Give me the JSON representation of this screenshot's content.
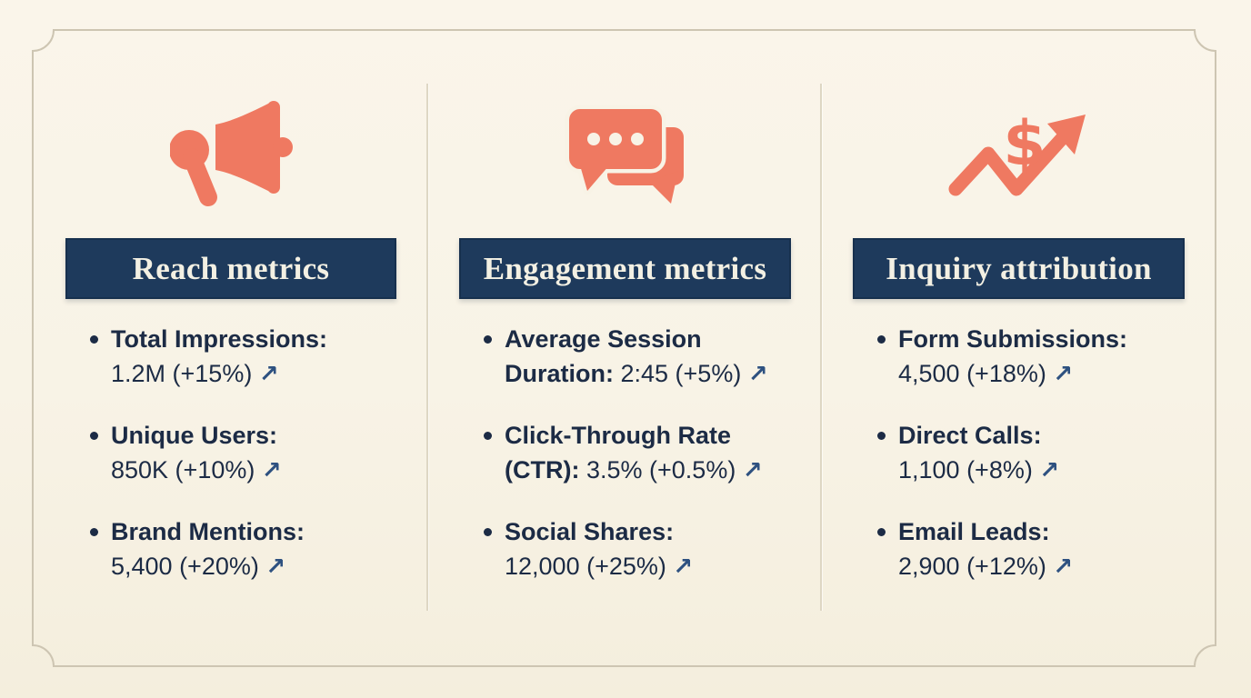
{
  "colors": {
    "background": "#f8f3e6",
    "frame_line": "#cdc5b2",
    "divider": "#ded7c4",
    "navy": "#1e3a5c",
    "header_text": "#f3f0e3",
    "body_text": "#1c2b45",
    "trend_arrow": "#2e5180",
    "accent_coral": "#ef7961"
  },
  "glyphs": {
    "trend_arrow": "↗"
  },
  "columns": [
    {
      "icon": "megaphone-icon",
      "header": "Reach metrics",
      "items": [
        {
          "lines": [
            {
              "bold": "Total Impressions:"
            },
            {
              "regular": "1.2M (+15%)",
              "arrow": true
            }
          ]
        },
        {
          "lines": [
            {
              "bold": "Unique Users:"
            },
            {
              "regular": "850K (+10%)",
              "arrow": true
            }
          ]
        },
        {
          "lines": [
            {
              "bold": "Brand Mentions:"
            },
            {
              "regular": "5,400 (+20%)",
              "arrow": true
            }
          ]
        }
      ]
    },
    {
      "icon": "chat-bubbles-icon",
      "header": "Engagement metrics",
      "items": [
        {
          "lines": [
            {
              "bold": "Average Session"
            },
            {
              "bold": "Duration:",
              "regular": "2:45 (+5%)",
              "arrow": true
            }
          ]
        },
        {
          "lines": [
            {
              "bold": "Click-Through Rate"
            },
            {
              "bold": "(CTR):",
              "regular": "3.5% (+0.5%)",
              "arrow": true
            }
          ]
        },
        {
          "lines": [
            {
              "bold": "Social Shares:"
            },
            {
              "regular": "12,000 (+25%)",
              "arrow": true
            }
          ]
        }
      ]
    },
    {
      "icon": "dollar-trend-icon",
      "header": "Inquiry attribution",
      "items": [
        {
          "lines": [
            {
              "bold": "Form Submissions:"
            },
            {
              "regular": "4,500 (+18%)",
              "arrow": true
            }
          ]
        },
        {
          "lines": [
            {
              "bold": "Direct Calls:"
            },
            {
              "regular": "1,100 (+8%)",
              "arrow": true
            }
          ]
        },
        {
          "lines": [
            {
              "bold": "Email Leads:"
            },
            {
              "regular": "2,900 (+12%)",
              "arrow": true
            }
          ]
        }
      ]
    }
  ]
}
